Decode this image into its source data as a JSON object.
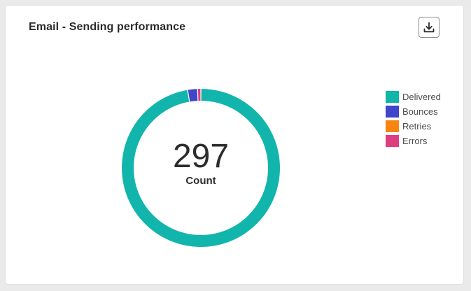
{
  "card": {
    "title": "Email - Sending performance"
  },
  "icons": {
    "download": "download-icon"
  },
  "center": {
    "value": "297",
    "label": "Count"
  },
  "chart_data": {
    "type": "pie",
    "style": "donut",
    "total": 297,
    "categories": [
      "Delivered",
      "Bounces",
      "Retries",
      "Errors"
    ],
    "values": [
      289,
      6,
      0,
      2
    ],
    "colors": [
      "#12b5ab",
      "#4046ca",
      "#f68511",
      "#de3d82"
    ],
    "legend": "right"
  }
}
